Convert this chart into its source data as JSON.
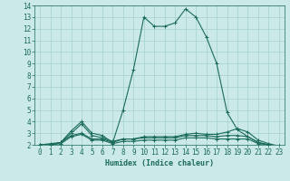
{
  "xlabel": "Humidex (Indice chaleur)",
  "ylabel": "",
  "xlim": [
    -0.5,
    23.5
  ],
  "ylim": [
    2,
    14
  ],
  "xticks": [
    0,
    1,
    2,
    3,
    4,
    5,
    6,
    7,
    8,
    9,
    10,
    11,
    12,
    13,
    14,
    15,
    16,
    17,
    18,
    19,
    20,
    21,
    22,
    23
  ],
  "yticks": [
    2,
    3,
    4,
    5,
    6,
    7,
    8,
    9,
    10,
    11,
    12,
    13,
    14
  ],
  "bg_color": "#cce9e9",
  "line_color": "#1a6b5a",
  "grid_color": "#aad4d4",
  "series": [
    {
      "x": [
        0,
        1,
        2,
        3,
        4,
        5,
        6,
        7,
        8,
        9,
        10,
        11,
        12,
        13,
        14,
        15,
        16,
        17,
        18,
        19,
        20,
        21,
        22,
        23
      ],
      "y": [
        2,
        2.1,
        2.2,
        3.2,
        4.0,
        3.0,
        2.8,
        2.2,
        5.0,
        8.5,
        13.0,
        12.2,
        12.2,
        12.5,
        13.7,
        13.0,
        11.3,
        9.0,
        4.8,
        3.3,
        2.7,
        2.2,
        2.0,
        1.9
      ]
    },
    {
      "x": [
        0,
        1,
        2,
        3,
        4,
        5,
        6,
        7,
        8,
        9,
        10,
        11,
        12,
        13,
        14,
        15,
        16,
        17,
        18,
        19,
        20,
        21,
        22,
        23
      ],
      "y": [
        2,
        2.0,
        2.2,
        3.0,
        3.8,
        2.8,
        2.6,
        2.3,
        2.5,
        2.5,
        2.7,
        2.7,
        2.7,
        2.7,
        2.9,
        3.0,
        2.9,
        2.9,
        3.1,
        3.4,
        3.1,
        2.4,
        2.1,
        1.9
      ]
    },
    {
      "x": [
        0,
        1,
        2,
        3,
        4,
        5,
        6,
        7,
        8,
        9,
        10,
        11,
        12,
        13,
        14,
        15,
        16,
        17,
        18,
        19,
        20,
        21,
        22,
        23
      ],
      "y": [
        2,
        2.0,
        2.2,
        2.8,
        3.0,
        2.5,
        2.5,
        2.2,
        2.5,
        2.5,
        2.6,
        2.6,
        2.6,
        2.6,
        2.8,
        2.8,
        2.8,
        2.7,
        2.8,
        2.8,
        2.7,
        2.2,
        2.0,
        1.9
      ]
    },
    {
      "x": [
        0,
        1,
        2,
        3,
        4,
        5,
        6,
        7,
        8,
        9,
        10,
        11,
        12,
        13,
        14,
        15,
        16,
        17,
        18,
        19,
        20,
        21,
        22,
        23
      ],
      "y": [
        2,
        2.0,
        2.1,
        2.7,
        2.9,
        2.4,
        2.4,
        2.1,
        2.3,
        2.3,
        2.4,
        2.4,
        2.4,
        2.4,
        2.6,
        2.6,
        2.6,
        2.5,
        2.5,
        2.5,
        2.5,
        2.1,
        2.0,
        1.8
      ]
    }
  ]
}
